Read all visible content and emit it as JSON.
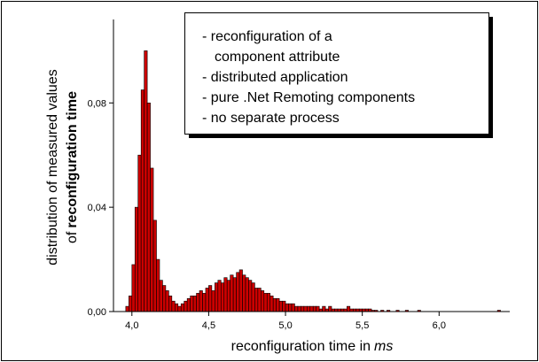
{
  "chart_data": {
    "type": "histogram",
    "xlabel": "reconfiguration time in",
    "xlabel_unit": "ms",
    "ylabel": {
      "line1": "distribution of measured values",
      "line2_prefix": "of",
      "line2_bold": "reconfiguration time"
    },
    "annotation": [
      "- reconfiguration of a",
      "component attribute",
      "- distributed application",
      "- pure .Net Remoting components",
      "- no separate process"
    ],
    "color": "#cc0000",
    "edge_color": "#000000",
    "xlim": [
      3.88,
      6.46
    ],
    "ylim": [
      0,
      0.112
    ],
    "xticks": [
      {
        "value": 4.0,
        "label": "4,0"
      },
      {
        "value": 4.5,
        "label": "4,5"
      },
      {
        "value": 5.0,
        "label": "5,0"
      },
      {
        "value": 5.5,
        "label": "5,5"
      },
      {
        "value": 6.0,
        "label": "6,0"
      }
    ],
    "yticks": [
      {
        "value": 0,
        "label": "0,00"
      },
      {
        "value": 0.04,
        "label": "0,04"
      },
      {
        "value": 0.08,
        "label": "0,08"
      }
    ],
    "grid": false,
    "bins": [
      3.96,
      3.98,
      4.0,
      4.02,
      4.04,
      4.06,
      4.08,
      4.1,
      4.12,
      4.14,
      4.16,
      4.18,
      4.2,
      4.22,
      4.24,
      4.26,
      4.28,
      4.3,
      4.32,
      4.34,
      4.36,
      4.38,
      4.4,
      4.42,
      4.44,
      4.46,
      4.48,
      4.5,
      4.52,
      4.54,
      4.56,
      4.58,
      4.6,
      4.62,
      4.64,
      4.66,
      4.68,
      4.7,
      4.72,
      4.74,
      4.76,
      4.78,
      4.8,
      4.82,
      4.84,
      4.86,
      4.88,
      4.9,
      4.92,
      4.94,
      4.96,
      4.98,
      5.0,
      5.02,
      5.04,
      5.06,
      5.08,
      5.1,
      5.12,
      5.14,
      5.16,
      5.18,
      5.2,
      5.22,
      5.24,
      5.26,
      5.28,
      5.3,
      5.32,
      5.34,
      5.36,
      5.38,
      5.4,
      5.42,
      5.44,
      5.46,
      5.48,
      5.5,
      5.52,
      5.54,
      5.56,
      5.58,
      5.6,
      5.62,
      5.64,
      5.66,
      5.68,
      5.7,
      5.72,
      5.74,
      5.76,
      5.78,
      5.8,
      5.82,
      5.84,
      5.86,
      5.88,
      5.9,
      5.92,
      5.94,
      5.96,
      5.98,
      6.0,
      6.02,
      6.04,
      6.06,
      6.08,
      6.1,
      6.12,
      6.14,
      6.16,
      6.18,
      6.2,
      6.22,
      6.24,
      6.26,
      6.28,
      6.3,
      6.32,
      6.34,
      6.36,
      6.38,
      6.4
    ],
    "values": [
      0.002,
      0.006,
      0.018,
      0.04,
      0.06,
      0.085,
      0.1,
      0.08,
      0.055,
      0.035,
      0.02,
      0.012,
      0.01,
      0.008,
      0.006,
      0.004,
      0.003,
      0.002,
      0.003,
      0.004,
      0.005,
      0.006,
      0.006,
      0.007,
      0.008,
      0.007,
      0.009,
      0.01,
      0.008,
      0.011,
      0.012,
      0.011,
      0.013,
      0.012,
      0.014,
      0.013,
      0.015,
      0.016,
      0.014,
      0.013,
      0.012,
      0.011,
      0.009,
      0.009,
      0.008,
      0.007,
      0.007,
      0.006,
      0.005,
      0.005,
      0.004,
      0.004,
      0.003,
      0.003,
      0.003,
      0.002,
      0.002,
      0.002,
      0.002,
      0.002,
      0.002,
      0.002,
      0.002,
      0.001,
      0.002,
      0.001,
      0.002,
      0.001,
      0.001,
      0.001,
      0.001,
      0.001,
      0.002,
      0.001,
      0.001,
      0.001,
      0.001,
      0.001,
      0.001,
      0.001,
      0.0005,
      0.0005,
      0,
      0.0005,
      0,
      0.0005,
      0,
      0,
      0.0005,
      0,
      0,
      0.0005,
      0,
      0,
      0,
      0.0005,
      0,
      0,
      0,
      0,
      0,
      0,
      0,
      0,
      0,
      0,
      0,
      0,
      0,
      0,
      0,
      0,
      0,
      0,
      0,
      0,
      0,
      0,
      0,
      0,
      0,
      0.0005
    ]
  }
}
